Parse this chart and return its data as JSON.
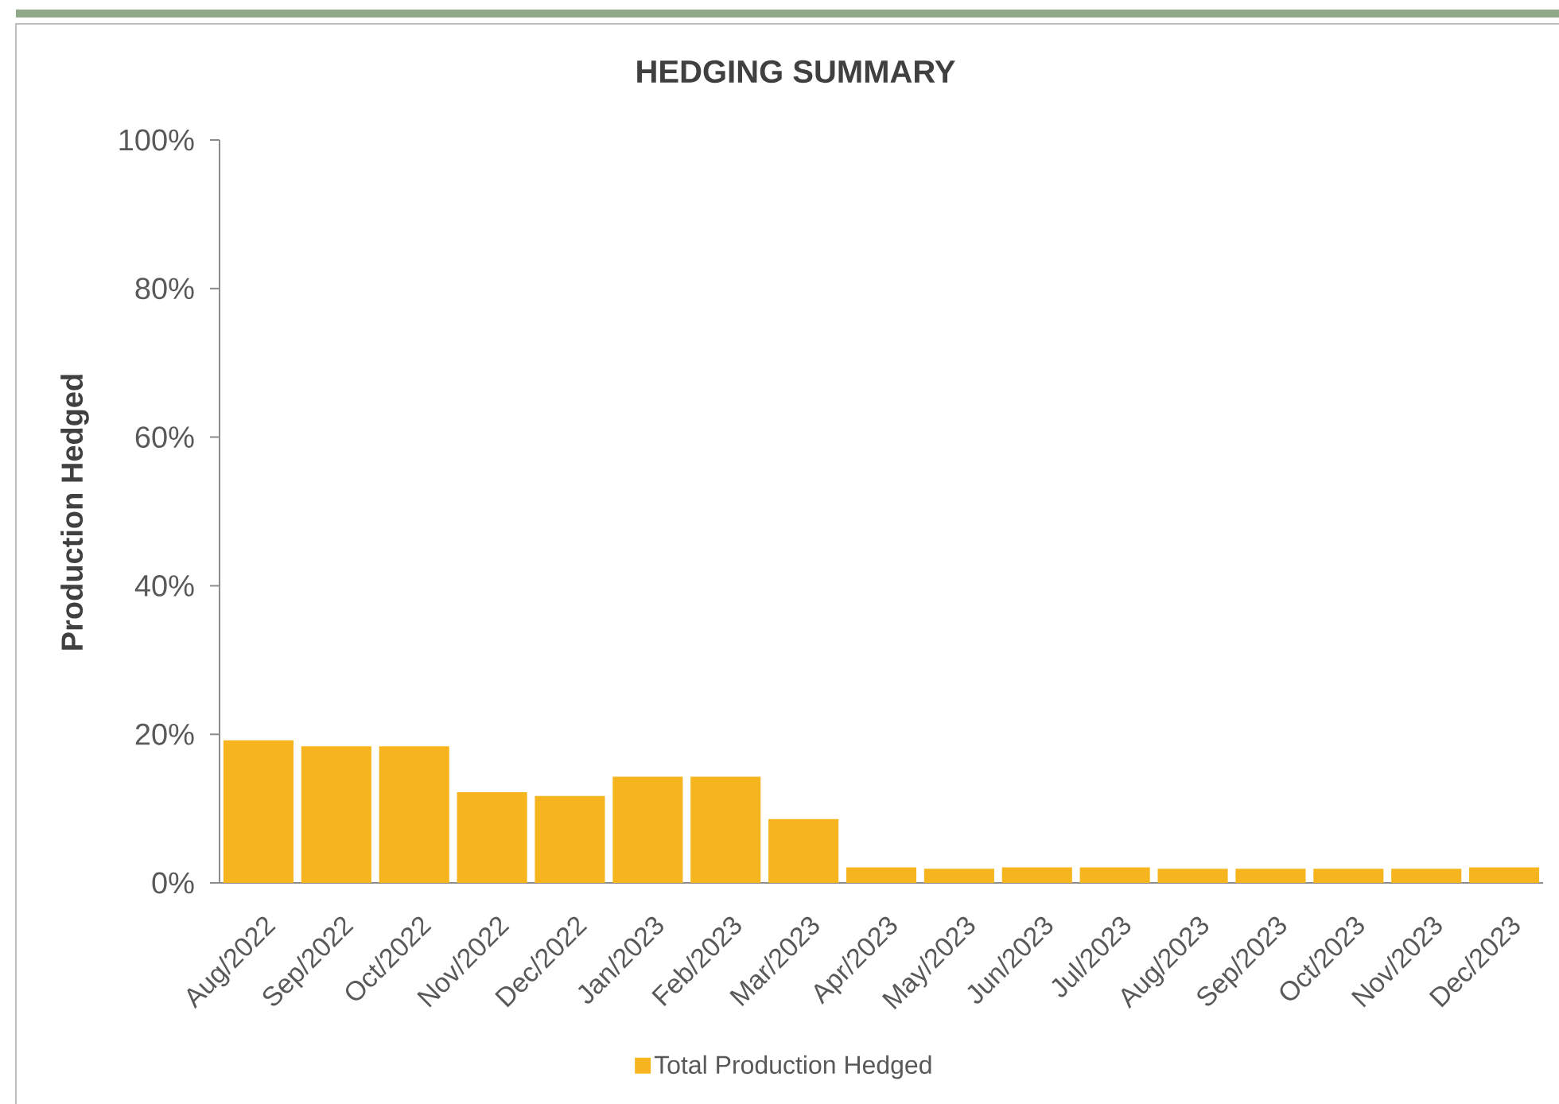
{
  "chart_data": {
    "type": "bar",
    "title": "HEDGING SUMMARY",
    "ylabel": "Production Hedged",
    "categories": [
      "Aug/2022",
      "Sep/2022",
      "Oct/2022",
      "Nov/2022",
      "Dec/2022",
      "Jan/2023",
      "Feb/2023",
      "Mar/2023",
      "Apr/2023",
      "May/2023",
      "Jun/2023",
      "Jul/2023",
      "Aug/2023",
      "Sep/2023",
      "Oct/2023",
      "Nov/2023",
      "Dec/2023"
    ],
    "series": [
      {
        "name": "Total Production Hedged",
        "color": "#F6B51E",
        "values": [
          19.2,
          18.4,
          18.4,
          12.2,
          11.7,
          14.3,
          14.3,
          8.6,
          2.1,
          1.9,
          2.1,
          2.1,
          1.9,
          1.9,
          1.9,
          1.9,
          2.1
        ]
      }
    ],
    "ylim": [
      0,
      100
    ],
    "yticks": [
      {
        "value": 0,
        "label": "0%"
      },
      {
        "value": 20,
        "label": "20%"
      },
      {
        "value": 40,
        "label": "40%"
      },
      {
        "value": 60,
        "label": "60%"
      },
      {
        "value": 80,
        "label": "80%"
      },
      {
        "value": 100,
        "label": "100%"
      }
    ],
    "legend": "bottom"
  }
}
